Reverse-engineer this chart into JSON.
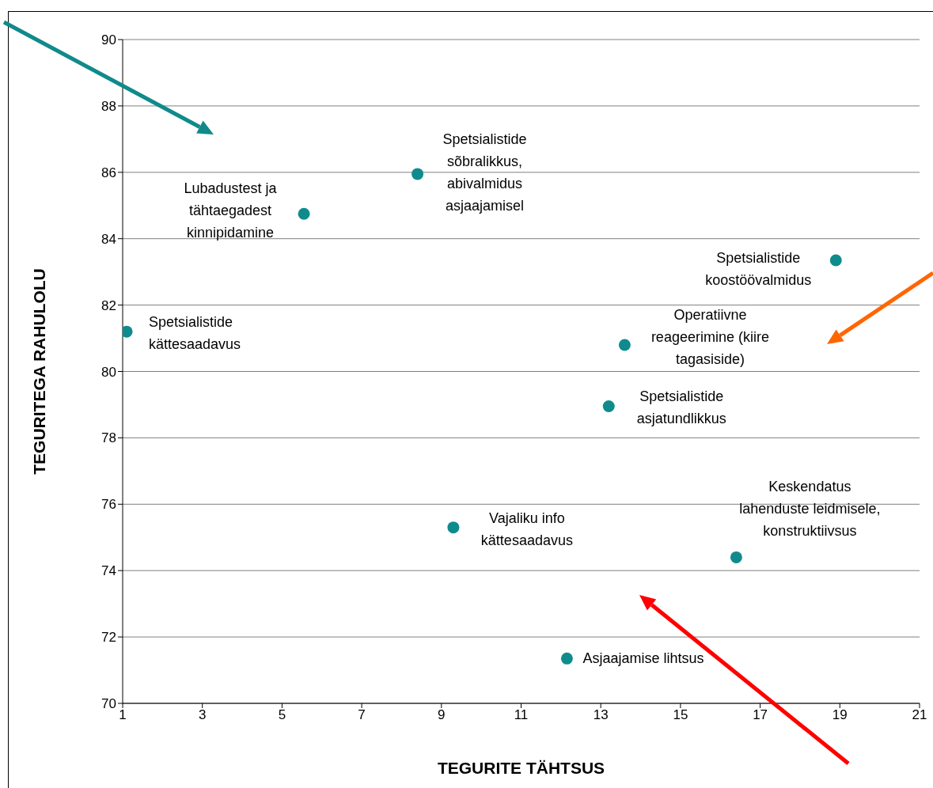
{
  "chart_data": {
    "type": "scatter",
    "xlabel": "TEGURITE TÄHTSUS",
    "ylabel": "TEGURITEGA RAHULOLU",
    "x": [
      1.1,
      5.55,
      8.4,
      18.9,
      13.6,
      13.2,
      9.3,
      16.4,
      12.15
    ],
    "series": [
      {
        "color": "#0f8b8d",
        "values": [
          81.2,
          84.75,
          85.95,
          83.35,
          80.8,
          78.95,
          75.3,
          74.4,
          71.35
        ]
      }
    ],
    "xlim": [
      1,
      21
    ],
    "xticks": [
      1,
      3,
      5,
      7,
      9,
      11,
      13,
      15,
      17,
      19,
      21
    ],
    "ylim": [
      70,
      90
    ],
    "yticks": [
      70,
      72,
      74,
      76,
      78,
      80,
      82,
      84,
      86,
      88,
      90
    ],
    "grid": "y",
    "marker": "circle",
    "annotations": [
      {
        "text": "Spetsialistide\nkättesaadavus",
        "x": 1.1,
        "y": 81.2
      },
      {
        "text": "Lubadustest ja\ntähtaegadest\nkinnipidamine",
        "x": 5.55,
        "y": 84.75
      },
      {
        "text": "Spetsialistide\nsõbralikkus,\nabivalmidus\nasjaajamisel",
        "x": 8.4,
        "y": 85.95
      },
      {
        "text": "Spetsialistide\nkoostöövalmidus",
        "x": 18.9,
        "y": 83.35
      },
      {
        "text": "Operatiivne\nreageerimine (kiire\ntagasiside)",
        "x": 13.6,
        "y": 80.8
      },
      {
        "text": "Spetsialistide\nasjatundlikkus",
        "x": 13.2,
        "y": 78.95
      },
      {
        "text": "Vajaliku info\nkättesaadavus",
        "x": 9.3,
        "y": 75.3
      },
      {
        "text": "Keskendatus\nlahenduste leidmisele,\nkonstruktiivsus",
        "x": 16.4,
        "y": 74.4
      },
      {
        "text": "Asjaajamise lihtsus",
        "x": 12.15,
        "y": 71.35
      }
    ]
  }
}
